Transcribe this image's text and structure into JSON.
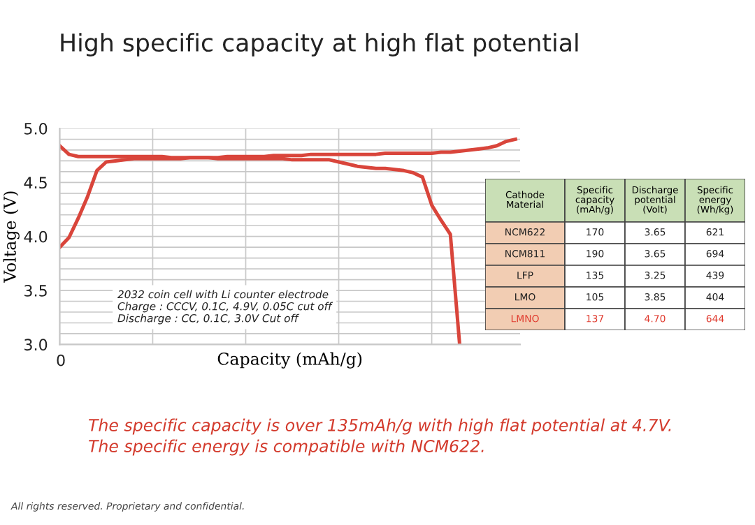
{
  "chart_data": [
    {
      "type": "line",
      "title": "High specific capacity at high flat potential",
      "xlabel": "Capacity (mAh/g)",
      "ylabel": "Voltage (V)",
      "categories": [
        null,
        null,
        null,
        null,
        null,
        null,
        null,
        null,
        null,
        null,
        null,
        null,
        null,
        null,
        null,
        null,
        null,
        null,
        null,
        null,
        null,
        null,
        null,
        null,
        null,
        null,
        null,
        null,
        null,
        null,
        null,
        null,
        null,
        null,
        null,
        null,
        null,
        null,
        null,
        null,
        null,
        null,
        null,
        null,
        null,
        null,
        null,
        null,
        null,
        null
      ],
      "series": [
        {
          "color": "#d9453b",
          "values": [
            3.9,
            3.99,
            4.17,
            4.37,
            4.61,
            4.69,
            4.7,
            4.71,
            4.72,
            4.72,
            4.72,
            4.72,
            4.72,
            4.72,
            4.73,
            4.73,
            4.73,
            4.73,
            4.74,
            4.74,
            4.74,
            4.74,
            4.74,
            4.75,
            4.75,
            4.75,
            4.75,
            4.76,
            4.76,
            4.76,
            4.76,
            4.76,
            4.76,
            4.76,
            4.76,
            4.77,
            4.77,
            4.77,
            4.77,
            4.77,
            4.77,
            4.78,
            4.78,
            4.79,
            4.8,
            4.81,
            4.82,
            4.84,
            4.88,
            4.9
          ]
        },
        {
          "color": "#d9453b",
          "values": [
            4.84,
            4.76,
            4.74,
            4.74,
            4.74,
            4.74,
            4.74,
            4.74,
            4.74,
            4.74,
            4.74,
            4.74,
            4.73,
            4.73,
            4.73,
            4.73,
            4.73,
            4.72,
            4.72,
            4.72,
            4.72,
            4.72,
            4.72,
            4.72,
            4.72,
            4.71,
            4.71,
            4.71,
            4.71,
            4.71,
            4.69,
            4.67,
            4.65,
            4.64,
            4.63,
            4.63,
            4.62,
            4.61,
            4.59,
            4.55,
            4.29,
            4.15,
            4.02,
            3.0,
            null,
            null,
            null,
            null,
            null,
            null
          ]
        }
      ],
      "ylim": [
        3.0,
        5.0
      ],
      "yticks": [
        {
          "value": 3.0,
          "label": "3.0"
        },
        {
          "value": 3.1,
          "label": null
        },
        {
          "value": 3.2,
          "label": null
        },
        {
          "value": 3.3,
          "label": null
        },
        {
          "value": 3.4,
          "label": null
        },
        {
          "value": 3.5,
          "label": "3.5"
        },
        {
          "value": 3.6,
          "label": null
        },
        {
          "value": 3.7,
          "label": null
        },
        {
          "value": 3.8,
          "label": null
        },
        {
          "value": 3.9,
          "label": null
        },
        {
          "value": 4.0,
          "label": "4.0"
        },
        {
          "value": 4.1,
          "label": null
        },
        {
          "value": 4.2,
          "label": null
        },
        {
          "value": 4.3,
          "label": null
        },
        {
          "value": 4.4,
          "label": null
        },
        {
          "value": 4.5,
          "label": "4.5"
        },
        {
          "value": 4.6,
          "label": null
        },
        {
          "value": 4.7,
          "label": null
        },
        {
          "value": 4.8,
          "label": null
        },
        {
          "value": 4.9,
          "label": null
        },
        {
          "value": 5.0,
          "label": "5.0"
        }
      ],
      "grid": true,
      "tick_labels": "y",
      "marker": "none",
      "line_style": "solid",
      "annotations": [
        "2032 coin cell with Li counter electrode\nCharge : CCCV, 0.1C, 4.9V, 0.05C cut off\nDischarge : CC, 0.1C, 3.0V Cut off",
        "The specific capacity is over 135mAh/g with high flat potential at 4.7V.\nThe specific energy is compatible with NCM622.",
        "All rights reserved. Proprietary and confidential.",
        "0"
      ]
    },
    {
      "type": "other",
      "categories": [
        "Cathode\nMaterial",
        "Specific\ncapacity\n(mAh/g)",
        "Discharge\npotential\n(Volt)",
        "Specific\nenergy\n(Wh/kg)"
      ],
      "y_categories": [
        "NCM622",
        "NCM811",
        "LFP",
        "LMO",
        "LMNO"
      ],
      "cell_labels": [
        [
          "170",
          "3.65",
          "621"
        ],
        [
          "190",
          "3.65",
          "694"
        ],
        [
          "135",
          "3.25",
          "439"
        ],
        [
          "105",
          "3.85",
          "404"
        ],
        [
          "137",
          "4.70",
          "644"
        ]
      ]
    }
  ]
}
